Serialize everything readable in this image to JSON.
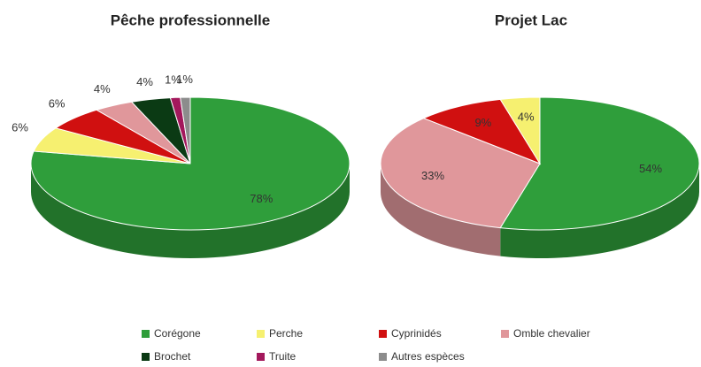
{
  "chart_data": [
    {
      "type": "pie3d",
      "title": "Pêche professionnelle",
      "categories": [
        "Corégone",
        "Perche",
        "Cyprinidés",
        "Omble chevalier",
        "Brochet",
        "Truite",
        "Autres espèces"
      ],
      "values": [
        78,
        6,
        6,
        4,
        4,
        1,
        1
      ],
      "value_labels": [
        "78%",
        "6%",
        "6%",
        "4%",
        "4%",
        "1%",
        "1%"
      ],
      "colors": [
        "#2f9e3b",
        "#f6f070",
        "#d01010",
        "#e0979b",
        "#0b3a14",
        "#a3185c",
        "#8c8c8c"
      ]
    },
    {
      "type": "pie3d",
      "title": "Projet Lac",
      "categories": [
        "Corégone",
        "Omble chevalier",
        "Cyprinidés",
        "Perche"
      ],
      "values": [
        54,
        33,
        9,
        4
      ],
      "value_labels": [
        "54%",
        "33%",
        "9%",
        "4%"
      ],
      "colors": [
        "#2f9e3b",
        "#e0979b",
        "#d01010",
        "#f6f070"
      ]
    }
  ]
}
